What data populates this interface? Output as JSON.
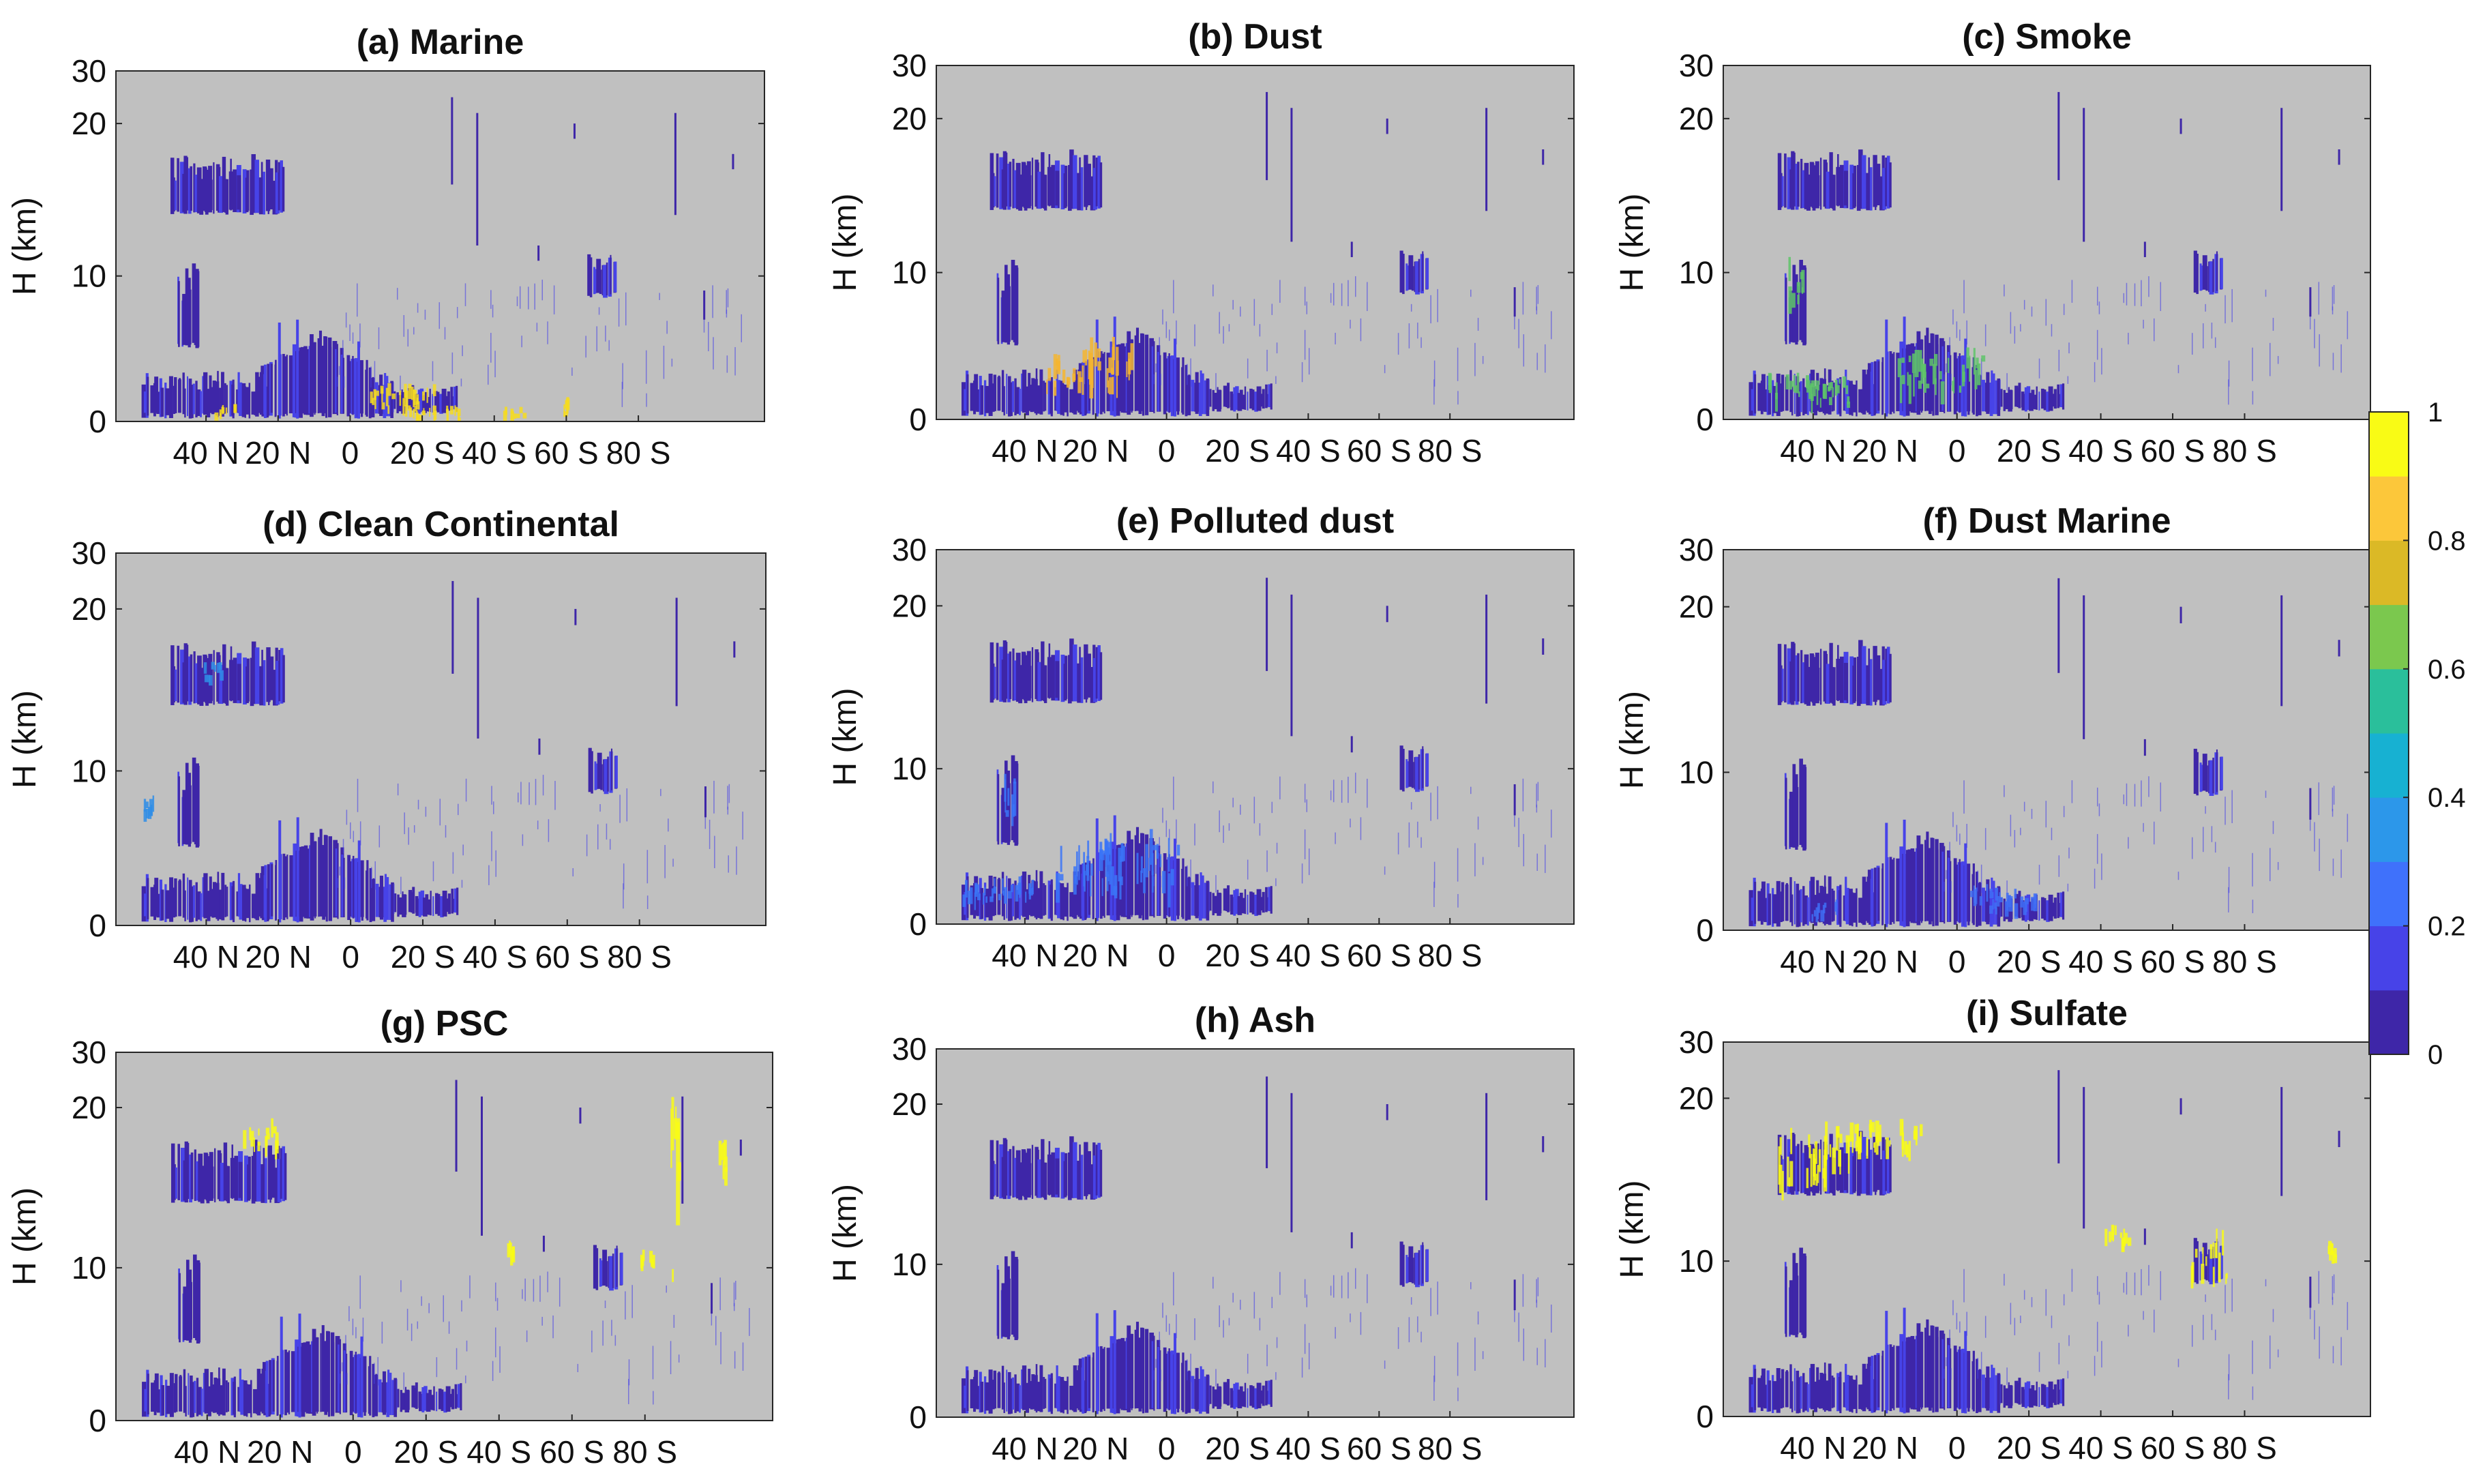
{
  "chart_data": {
    "type": "heatmap",
    "layout": "3x3 grid of latitude-height cross sections with shared colorbar",
    "shared": {
      "ylabel": "H (km)",
      "y_ticks": [
        0,
        10,
        20,
        30
      ],
      "ylim": [
        0,
        30
      ],
      "x_tick_labels": [
        "40 N",
        "20 N",
        "0",
        "20 S",
        "40 S",
        "60 S",
        "80 S"
      ],
      "colorbar": {
        "min": 0,
        "max": 1,
        "tick_labels": [
          "0",
          "0.2",
          "0.4",
          "0.6",
          "0.8",
          "1"
        ],
        "levels": [
          "#3e26a8",
          "#4743e8",
          "#3f71fb",
          "#2c97ea",
          "#17b1d2",
          "#2abf9b",
          "#7bc84e",
          "#dbb926",
          "#fcc73a",
          "#f9fb15"
        ]
      },
      "background_color": "#c0c0c0"
    },
    "panels": [
      {
        "title": "(a) Marine",
        "hotspot_color": "#f6dc1e",
        "hotspots": [
          {
            "lat": -14,
            "h": 1.5,
            "dlat": 9,
            "dh": 1.4
          },
          {
            "lat": -22,
            "h": 0.5,
            "dlat": 8,
            "dh": 0.8
          },
          {
            "lat": -45,
            "h": 0.5,
            "dlat": 3,
            "dh": 0.6
          },
          {
            "lat": -60,
            "h": 1.0,
            "dlat": 1,
            "dh": 1.0
          },
          {
            "lat": 35,
            "h": 0.6,
            "dlat": 3,
            "dh": 0.6
          }
        ]
      },
      {
        "title": "(b) Dust",
        "hotspot_color": "#f5b52f",
        "hotspots": [
          {
            "lat": 20,
            "h": 3.5,
            "dlat": 6,
            "dh": 3.0
          },
          {
            "lat": 13,
            "h": 3.0,
            "dlat": 4,
            "dh": 2.8
          },
          {
            "lat": 30,
            "h": 3.0,
            "dlat": 4,
            "dh": 2.0
          }
        ]
      },
      {
        "title": "(c) Smoke",
        "hotspot_color": "#5ec468",
        "hotspots": [
          {
            "lat": 42,
            "h": 1.8,
            "dlat": 12,
            "dh": 1.6
          },
          {
            "lat": 5,
            "h": 3.0,
            "dlat": 12,
            "dh": 2.5
          },
          {
            "lat": 45,
            "h": 9.0,
            "dlat": 2,
            "dh": 2.5
          }
        ]
      },
      {
        "title": "(d) Clean Continental",
        "hotspot_color": "#2f8de6",
        "hotspots": [
          {
            "lat": 56,
            "h": 7.5,
            "dlat": 2,
            "dh": 1.5
          },
          {
            "lat": 39,
            "h": 16.0,
            "dlat": 3,
            "dh": 1.0
          }
        ]
      },
      {
        "title": "(e) Polluted dust",
        "hotspot_color": "#3b74f7",
        "hotspots": [
          {
            "lat": 15,
            "h": 3.5,
            "dlat": 18,
            "dh": 3.0
          },
          {
            "lat": 48,
            "h": 2.0,
            "dlat": 10,
            "dh": 1.2
          },
          {
            "lat": 45,
            "h": 8.0,
            "dlat": 2,
            "dh": 3.0
          }
        ]
      },
      {
        "title": "(f) Dust Marine",
        "hotspot_color": "#3f6df5",
        "hotspots": [
          {
            "lat": -12,
            "h": 1.8,
            "dlat": 10,
            "dh": 1.2
          },
          {
            "lat": 37,
            "h": 1.2,
            "dlat": 4,
            "dh": 1.0
          }
        ]
      },
      {
        "title": "(g) PSC",
        "hotspot_color": "#f9fb15",
        "hotspots": [
          {
            "lat": -88,
            "h": 14.0,
            "dlat": 1,
            "dh": 12.0
          },
          {
            "lat": -101,
            "h": 16.5,
            "dlat": 1.5,
            "dh": 2.0
          },
          {
            "lat": -80,
            "h": 10.5,
            "dlat": 2,
            "dh": 1.0
          },
          {
            "lat": 26,
            "h": 18.0,
            "dlat": 5,
            "dh": 1.5
          },
          {
            "lat": -43,
            "h": 11.0,
            "dlat": 2,
            "dh": 1.0
          }
        ]
      },
      {
        "title": "(h) Ash",
        "hotspot_color": "#3e26a8",
        "hotspots": []
      },
      {
        "title": "(i) Sulfate",
        "hotspot_color": "#f9fb15",
        "hotspots": [
          {
            "lat": 40,
            "h": 16.0,
            "dlat": 10,
            "dh": 3.0
          },
          {
            "lat": 22,
            "h": 17.5,
            "dlat": 12,
            "dh": 1.5
          },
          {
            "lat": -70,
            "h": 10.0,
            "dlat": 5,
            "dh": 2.5
          },
          {
            "lat": -44,
            "h": 11.5,
            "dlat": 4,
            "dh": 1.2
          },
          {
            "lat": -104,
            "h": 10.5,
            "dlat": 1,
            "dh": 0.8
          }
        ]
      }
    ],
    "base_structures": [
      {
        "name": "upper tropospheric band 40N-20N",
        "lat_range": [
          50,
          18
        ],
        "h_range": [
          14,
          18
        ]
      },
      {
        "name": "boundary layer aerosol north",
        "lat_range": [
          58,
          22
        ],
        "h_range": [
          0.2,
          3.5
        ]
      },
      {
        "name": "elevated layer tropics",
        "lat_range": [
          25,
          -12
        ],
        "h_range": [
          0.2,
          6.5
        ]
      },
      {
        "name": "southern layer 15S-30S",
        "lat_range": [
          -12,
          -30
        ],
        "h_range": [
          0.5,
          2.5
        ]
      },
      {
        "name": "mid-level feature 45N",
        "lat_range": [
          48,
          42
        ],
        "h_range": [
          5,
          11
        ]
      },
      {
        "name": "high feature 60S-70S",
        "lat_range": [
          -66,
          -74
        ],
        "h_range": [
          8.5,
          11.5
        ]
      }
    ]
  }
}
